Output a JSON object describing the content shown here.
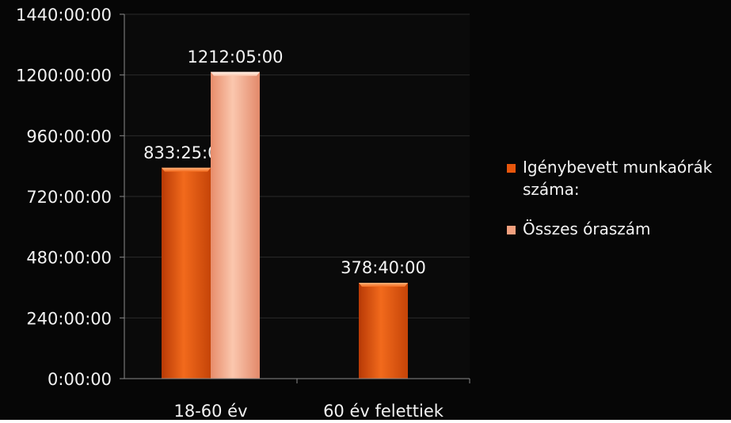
{
  "chart_data": {
    "type": "bar",
    "title": "",
    "xlabel": "",
    "ylabel": "",
    "categories": [
      "18-60 év",
      "60 év felettiek"
    ],
    "series": [
      {
        "name": "Igénybevett munkaórák száma:",
        "values": [
          833.4167,
          378.6667
        ],
        "labels": [
          "833:25:00",
          "378:40:00"
        ],
        "color": "#E8560C"
      },
      {
        "name": "Összes óraszám",
        "values": [
          1212.0833,
          null
        ],
        "labels": [
          "1212:05:00",
          ""
        ],
        "color": "#F2A07E"
      }
    ],
    "yticks": [
      "0:00:00",
      "240:00:00",
      "480:00:00",
      "720:00:00",
      "960:00:00",
      "1200:00:00",
      "1440:00:00"
    ],
    "ylim": [
      0,
      1440
    ],
    "grid": true,
    "legend_position": "right",
    "background": "#060606"
  }
}
